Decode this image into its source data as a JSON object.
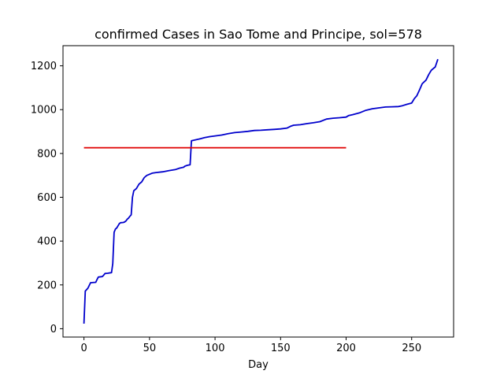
{
  "chart_data": {
    "type": "line",
    "title": "confirmed Cases in Sao Tome and Principe, sol=578",
    "xlabel": "Day",
    "ylabel": "",
    "xlim": [
      -16,
      282
    ],
    "ylim": [
      -38,
      1292
    ],
    "xticks": [
      0,
      50,
      100,
      150,
      200,
      250
    ],
    "yticks": [
      0,
      200,
      400,
      600,
      800,
      1000,
      1200
    ],
    "grid": false,
    "series": [
      {
        "color": "#0000cc",
        "points": [
          [
            0,
            23
          ],
          [
            1,
            172
          ],
          [
            3,
            185
          ],
          [
            5,
            210
          ],
          [
            9,
            212
          ],
          [
            10,
            225
          ],
          [
            11,
            236
          ],
          [
            14,
            238
          ],
          [
            15,
            244
          ],
          [
            16,
            252
          ],
          [
            18,
            253
          ],
          [
            21,
            256
          ],
          [
            22,
            297
          ],
          [
            23,
            440
          ],
          [
            24,
            455
          ],
          [
            25,
            460
          ],
          [
            26,
            470
          ],
          [
            27,
            480
          ],
          [
            28,
            484
          ],
          [
            30,
            485
          ],
          [
            31,
            487
          ],
          [
            32,
            492
          ],
          [
            33,
            500
          ],
          [
            34,
            505
          ],
          [
            35,
            513
          ],
          [
            36,
            520
          ],
          [
            37,
            600
          ],
          [
            38,
            630
          ],
          [
            40,
            640
          ],
          [
            42,
            660
          ],
          [
            44,
            670
          ],
          [
            45,
            680
          ],
          [
            46,
            690
          ],
          [
            48,
            700
          ],
          [
            50,
            705
          ],
          [
            52,
            710
          ],
          [
            55,
            713
          ],
          [
            60,
            716
          ],
          [
            65,
            722
          ],
          [
            70,
            727
          ],
          [
            73,
            733
          ],
          [
            76,
            737
          ],
          [
            77,
            742
          ],
          [
            79,
            746
          ],
          [
            81,
            748
          ],
          [
            82,
            858
          ],
          [
            85,
            862
          ],
          [
            88,
            866
          ],
          [
            92,
            872
          ],
          [
            96,
            877
          ],
          [
            100,
            880
          ],
          [
            105,
            884
          ],
          [
            110,
            890
          ],
          [
            115,
            895
          ],
          [
            120,
            898
          ],
          [
            125,
            901
          ],
          [
            130,
            905
          ],
          [
            135,
            906
          ],
          [
            140,
            908
          ],
          [
            145,
            910
          ],
          [
            150,
            912
          ],
          [
            155,
            916
          ],
          [
            158,
            925
          ],
          [
            160,
            929
          ],
          [
            165,
            931
          ],
          [
            170,
            936
          ],
          [
            175,
            940
          ],
          [
            180,
            945
          ],
          [
            185,
            957
          ],
          [
            190,
            961
          ],
          [
            195,
            963
          ],
          [
            200,
            966
          ],
          [
            202,
            973
          ],
          [
            205,
            977
          ],
          [
            210,
            985
          ],
          [
            215,
            997
          ],
          [
            220,
            1004
          ],
          [
            225,
            1008
          ],
          [
            230,
            1012
          ],
          [
            235,
            1013
          ],
          [
            240,
            1014
          ],
          [
            243,
            1018
          ],
          [
            246,
            1024
          ],
          [
            250,
            1030
          ],
          [
            252,
            1050
          ],
          [
            254,
            1064
          ],
          [
            256,
            1090
          ],
          [
            258,
            1118
          ],
          [
            261,
            1135
          ],
          [
            263,
            1160
          ],
          [
            265,
            1180
          ],
          [
            268,
            1195
          ],
          [
            270,
            1230
          ]
        ]
      },
      {
        "color": "#e00000",
        "points": [
          [
            0,
            826
          ],
          [
            200,
            826
          ]
        ]
      }
    ]
  }
}
